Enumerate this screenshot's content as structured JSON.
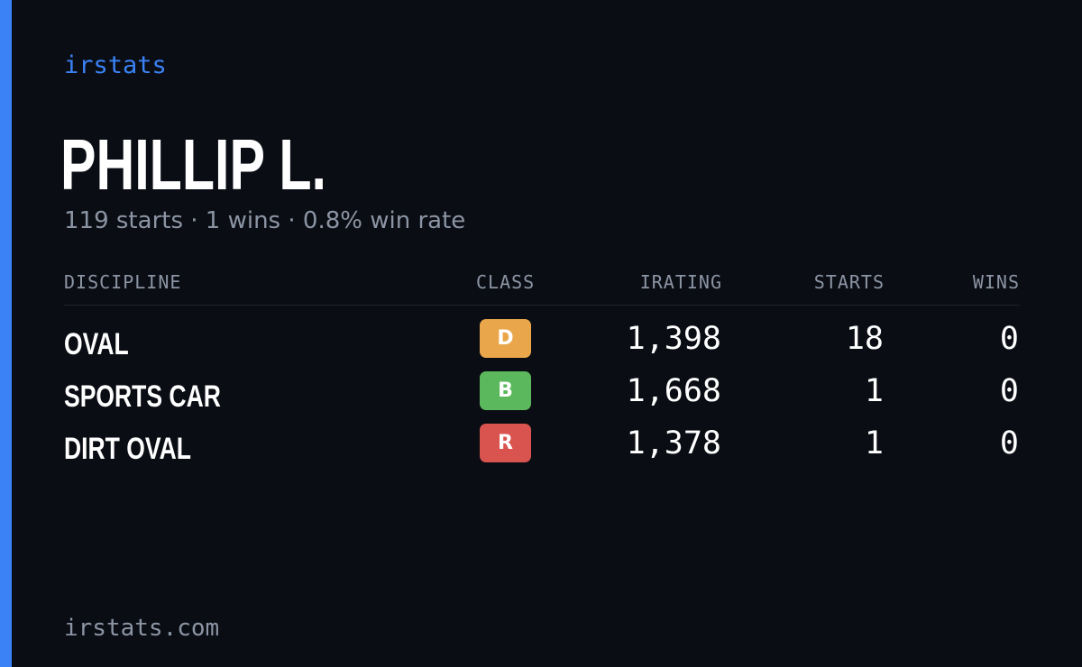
{
  "brand": "irstats",
  "driver": {
    "name": "PHILLIP L.",
    "summary": "119 starts · 1 wins · 0.8% win rate"
  },
  "table": {
    "columns": [
      "DISCIPLINE",
      "CLASS",
      "IRATING",
      "STARTS",
      "WINS"
    ],
    "rows": [
      {
        "discipline": "OVAL",
        "class": "D",
        "class_color": "#eaa64a",
        "irating": "1,398",
        "starts": "18",
        "wins": "0"
      },
      {
        "discipline": "SPORTS CAR",
        "class": "B",
        "class_color": "#5bb85c",
        "irating": "1,668",
        "starts": "1",
        "wins": "0"
      },
      {
        "discipline": "DIRT OVAL",
        "class": "R",
        "class_color": "#d9534f",
        "irating": "1,378",
        "starts": "1",
        "wins": "0"
      }
    ]
  },
  "footer": "irstats.com",
  "colors": {
    "background": "#0a0d14",
    "accent": "#3b82f6",
    "muted_text": "#8c95a4",
    "text": "#ffffff"
  }
}
